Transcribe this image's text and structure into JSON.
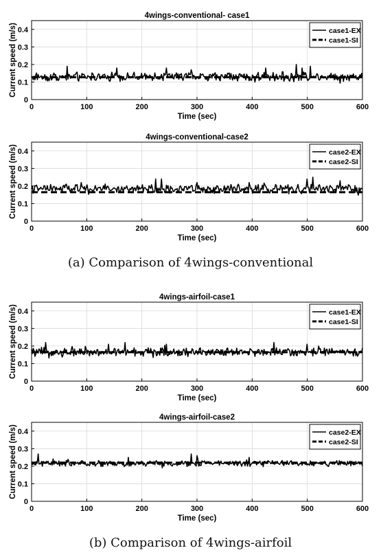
{
  "captions": {
    "a": "(a) Comparison of 4wings-conventional",
    "b": "(b) Comparison of 4wings-airfoil"
  },
  "colors": {
    "series": "#000000",
    "grid": "#d9d9d9",
    "axis": "#000000"
  },
  "chart_data": [
    {
      "type": "line",
      "title": "4wings-conventional- case1",
      "xlabel": "Time (sec)",
      "ylabel": "Current speed (m/s)",
      "xlim": [
        0,
        600
      ],
      "ylim": [
        0,
        0.45
      ],
      "xticks": [
        0,
        100,
        200,
        300,
        400,
        500,
        600
      ],
      "xtick_labels": [
        "0",
        "100",
        "200",
        "300",
        "400",
        "500",
        "600"
      ],
      "yticks": [
        0,
        0.1,
        0.2,
        0.3,
        0.4
      ],
      "ytick_labels": [
        "0",
        "0.1",
        "0.2",
        "0.3",
        "0.4"
      ],
      "grid": true,
      "legend_position": "top-right",
      "series": [
        {
          "name": "case1-EX",
          "style": "solid",
          "mean": 0.13,
          "noise": 0.018,
          "spikes": [
            [
              65,
              0.19
            ],
            [
              155,
              0.18
            ],
            [
              245,
              0.18
            ],
            [
              290,
              0.17
            ],
            [
              425,
              0.18
            ],
            [
              480,
              0.2
            ],
            [
              490,
              0.18
            ],
            [
              505,
              0.19
            ]
          ]
        },
        {
          "name": "case1-SI",
          "style": "dashed",
          "x": [
            0,
            600
          ],
          "values": [
            0.127,
            0.127
          ]
        }
      ]
    },
    {
      "type": "line",
      "title": "4wings-conventional-case2",
      "xlabel": "Time (sec)",
      "ylabel": "Current speed (m/s)",
      "xlim": [
        0,
        600
      ],
      "ylim": [
        0,
        0.45
      ],
      "xticks": [
        0,
        100,
        200,
        300,
        400,
        500,
        600
      ],
      "xtick_labels": [
        "0",
        "100",
        "200",
        "300",
        "400",
        "500",
        "600"
      ],
      "yticks": [
        0,
        0.1,
        0.2,
        0.3,
        0.4
      ],
      "ytick_labels": [
        "0",
        "0.1",
        "0.2",
        "0.3",
        "0.4"
      ],
      "grid": true,
      "legend_position": "top-right",
      "series": [
        {
          "name": "case2-EX",
          "style": "solid",
          "mean": 0.185,
          "noise": 0.018,
          "spikes": [
            [
              90,
              0.22
            ],
            [
              225,
              0.24
            ],
            [
              235,
              0.24
            ],
            [
              300,
              0.22
            ],
            [
              395,
              0.22
            ],
            [
              500,
              0.24
            ],
            [
              510,
              0.25
            ],
            [
              560,
              0.23
            ]
          ]
        },
        {
          "name": "case2-SI",
          "style": "dashed",
          "x": [
            0,
            600
          ],
          "values": [
            0.165,
            0.165
          ]
        }
      ]
    },
    {
      "type": "line",
      "title": "4wings-airfoil-case1",
      "xlabel": "Time (sec)",
      "ylabel": "Current speed (m/s)",
      "xlim": [
        0,
        600
      ],
      "ylim": [
        0,
        0.45
      ],
      "xticks": [
        0,
        100,
        200,
        300,
        400,
        500,
        600
      ],
      "xtick_labels": [
        "0",
        "100",
        "200",
        "300",
        "400",
        "500",
        "600"
      ],
      "yticks": [
        0,
        0.1,
        0.2,
        0.3,
        0.4
      ],
      "ytick_labels": [
        "0",
        "0.1",
        "0.2",
        "0.3",
        "0.4"
      ],
      "grid": true,
      "legend_position": "top-right",
      "series": [
        {
          "name": "case1-EX",
          "style": "solid",
          "mean": 0.165,
          "noise": 0.018,
          "spikes": [
            [
              25,
              0.22
            ],
            [
              140,
              0.21
            ],
            [
              170,
              0.22
            ],
            [
              245,
              0.21
            ],
            [
              440,
              0.22
            ],
            [
              500,
              0.21
            ],
            [
              520,
              0.2
            ]
          ]
        },
        {
          "name": "case1-SI",
          "style": "dashed",
          "x": [
            0,
            600
          ],
          "values": [
            0.165,
            0.165
          ]
        }
      ]
    },
    {
      "type": "line",
      "title": "4wings-airfoil-case2",
      "xlabel": "Time (sec)",
      "ylabel": "Current speed (m/s)",
      "xlim": [
        0,
        600
      ],
      "ylim": [
        0,
        0.45
      ],
      "xticks": [
        0,
        100,
        200,
        300,
        400,
        500,
        600
      ],
      "xtick_labels": [
        "0",
        "100",
        "200",
        "300",
        "400",
        "500",
        "600"
      ],
      "yticks": [
        0,
        0.1,
        0.2,
        0.3,
        0.4
      ],
      "ytick_labels": [
        "0",
        "0.1",
        "0.2",
        "0.3",
        "0.4"
      ],
      "grid": true,
      "legend_position": "top-right",
      "series": [
        {
          "name": "case2-EX",
          "style": "solid",
          "mean": 0.215,
          "noise": 0.012,
          "spikes": [
            [
              12,
              0.27
            ],
            [
              175,
              0.25
            ],
            [
              290,
              0.27
            ],
            [
              300,
              0.26
            ],
            [
              395,
              0.25
            ]
          ]
        },
        {
          "name": "case2-SI",
          "style": "dashed",
          "x": [
            0,
            600
          ],
          "values": [
            0.22,
            0.22
          ]
        }
      ]
    }
  ]
}
